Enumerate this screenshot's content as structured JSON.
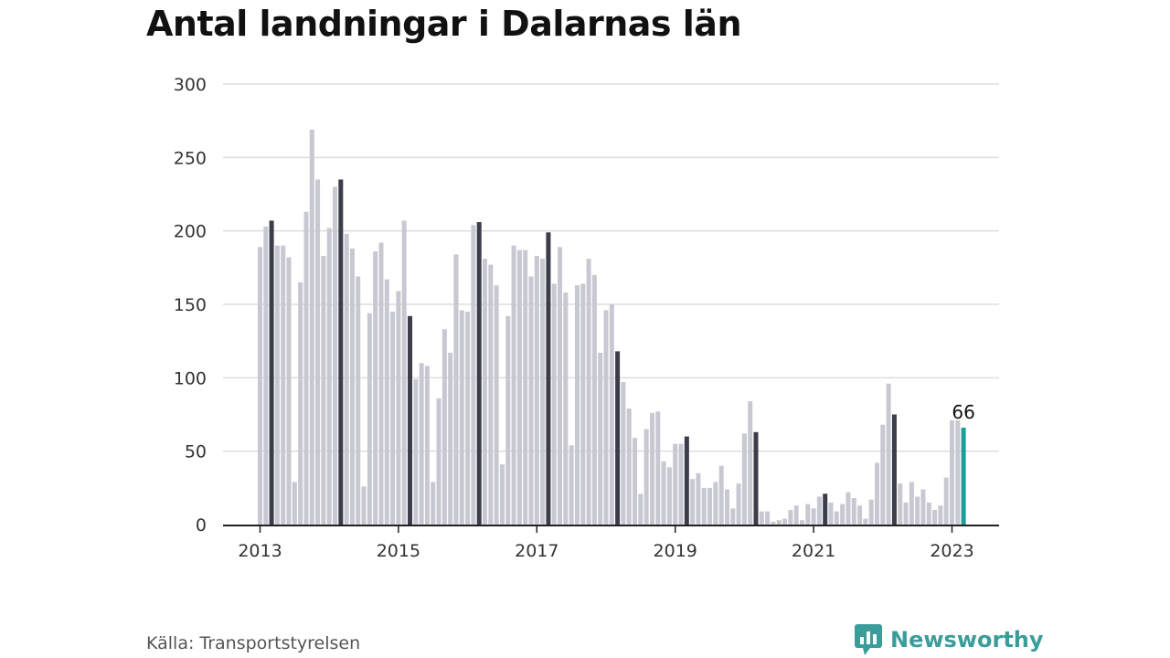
{
  "title": "Antal landningar i Dalarnas län",
  "source": "Källa: Transportstyrelsen",
  "brand": {
    "name": "Newsworthy",
    "icon": "newsworthy-logo-icon",
    "color": "#3a9d9a"
  },
  "colors": {
    "bar": "#c8c8d2",
    "march_bar": "#3c3c4a",
    "highlight": "#1a9e96",
    "grid": "#dddddd",
    "axis": "#222222"
  },
  "chart_data": {
    "type": "bar",
    "title": "Antal landningar i Dalarnas län",
    "xlabel": "",
    "ylabel": "",
    "ylim": [
      0,
      300
    ],
    "yticks": [
      0,
      50,
      100,
      150,
      200,
      250,
      300
    ],
    "xticks": [
      "2013",
      "2015",
      "2017",
      "2019",
      "2021",
      "2023"
    ],
    "grid": true,
    "start": "2013-01",
    "end": "2023-03",
    "granularity": "month",
    "highlight_label": "66",
    "values": [
      189,
      203,
      207,
      190,
      190,
      182,
      29,
      165,
      213,
      269,
      235,
      183,
      202,
      230,
      235,
      198,
      188,
      169,
      26,
      144,
      186,
      192,
      167,
      145,
      159,
      207,
      142,
      99,
      110,
      108,
      29,
      86,
      133,
      117,
      184,
      146,
      145,
      204,
      206,
      181,
      177,
      163,
      41,
      142,
      190,
      187,
      187,
      169,
      183,
      181,
      199,
      164,
      189,
      158,
      54,
      163,
      164,
      181,
      170,
      117,
      146,
      150,
      118,
      97,
      79,
      59,
      21,
      65,
      76,
      77,
      43,
      39,
      55,
      55,
      60,
      31,
      35,
      25,
      25,
      29,
      40,
      24,
      11,
      28,
      62,
      84,
      63,
      9,
      9,
      2,
      3,
      4,
      10,
      13,
      3,
      14,
      11,
      19,
      21,
      15,
      9,
      14,
      22,
      18,
      13,
      4,
      17,
      42,
      68,
      96,
      75,
      28,
      15,
      29,
      19,
      24,
      15,
      10,
      13,
      32,
      71,
      71,
      66
    ]
  }
}
